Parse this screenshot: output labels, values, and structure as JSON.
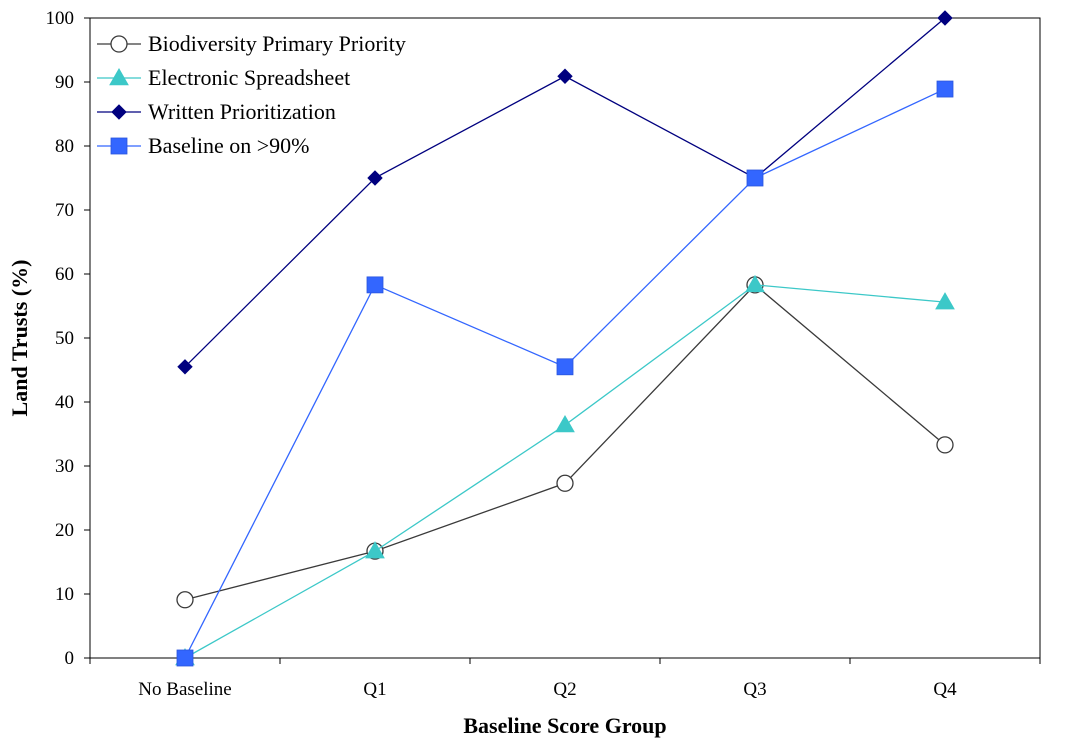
{
  "chart_data": {
    "type": "line",
    "title": "",
    "xlabel": "Baseline Score Group",
    "ylabel": "Land Trusts (%)",
    "categories": [
      "No Baseline",
      "Q1",
      "Q2",
      "Q3",
      "Q4"
    ],
    "ylim": [
      0,
      100
    ],
    "yticks": [
      "0",
      "10",
      "20",
      "30",
      "40",
      "50",
      "60",
      "70",
      "80",
      "90",
      "100"
    ],
    "grid": false,
    "legend_position": "top-left",
    "series": [
      {
        "name": "Biodiversity Primary Priority",
        "values": [
          9.1,
          16.7,
          27.3,
          58.3,
          33.3
        ],
        "color": "#3a3a3a",
        "marker": "circle-open"
      },
      {
        "name": "Electronic Spreadsheet",
        "values": [
          0,
          16.7,
          36.4,
          58.3,
          55.6
        ],
        "color": "#3cc8c8",
        "marker": "triangle"
      },
      {
        "name": "Written Prioritization",
        "values": [
          45.5,
          75,
          90.9,
          75,
          100
        ],
        "color": "#00007f",
        "marker": "diamond"
      },
      {
        "name": "Baseline on >90%",
        "values": [
          0,
          58.3,
          45.5,
          75,
          88.9
        ],
        "color": "#3366ff",
        "marker": "square"
      }
    ]
  }
}
